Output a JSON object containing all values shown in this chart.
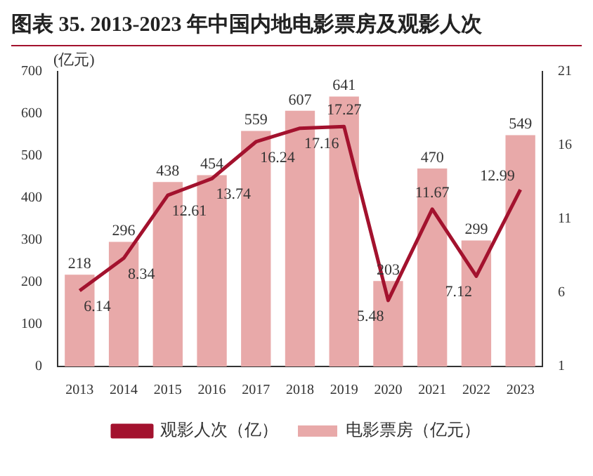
{
  "chart_data": {
    "type": "bar",
    "title": "图表 35. 2013-2023 年中国内地电影票房及观影人次",
    "ylabel": "(亿元)",
    "categories": [
      "2013",
      "2014",
      "2015",
      "2016",
      "2017",
      "2018",
      "2019",
      "2020",
      "2021",
      "2022",
      "2023"
    ],
    "series": [
      {
        "name": "电影票房（亿元）",
        "color": "#e8a9a9",
        "values": [
          218,
          296,
          438,
          454,
          559,
          607,
          641,
          203,
          470,
          299,
          549
        ]
      },
      {
        "name": "观影人次（亿）",
        "type": "line",
        "axis": "y2",
        "color": "#a3122e",
        "values": [
          6.14,
          8.34,
          12.61,
          13.74,
          16.24,
          17.16,
          17.27,
          5.48,
          11.67,
          7.12,
          12.99
        ]
      }
    ],
    "ylim": [
      0,
      700
    ],
    "yticks": [
      0,
      100,
      200,
      300,
      400,
      500,
      600,
      700
    ],
    "y2lim": [
      1,
      21
    ],
    "y2ticks": [
      1,
      6,
      11,
      16,
      21
    ],
    "data_labels": true,
    "legend": "bottom",
    "grid": false,
    "marker": "none",
    "line_style": "solid"
  }
}
